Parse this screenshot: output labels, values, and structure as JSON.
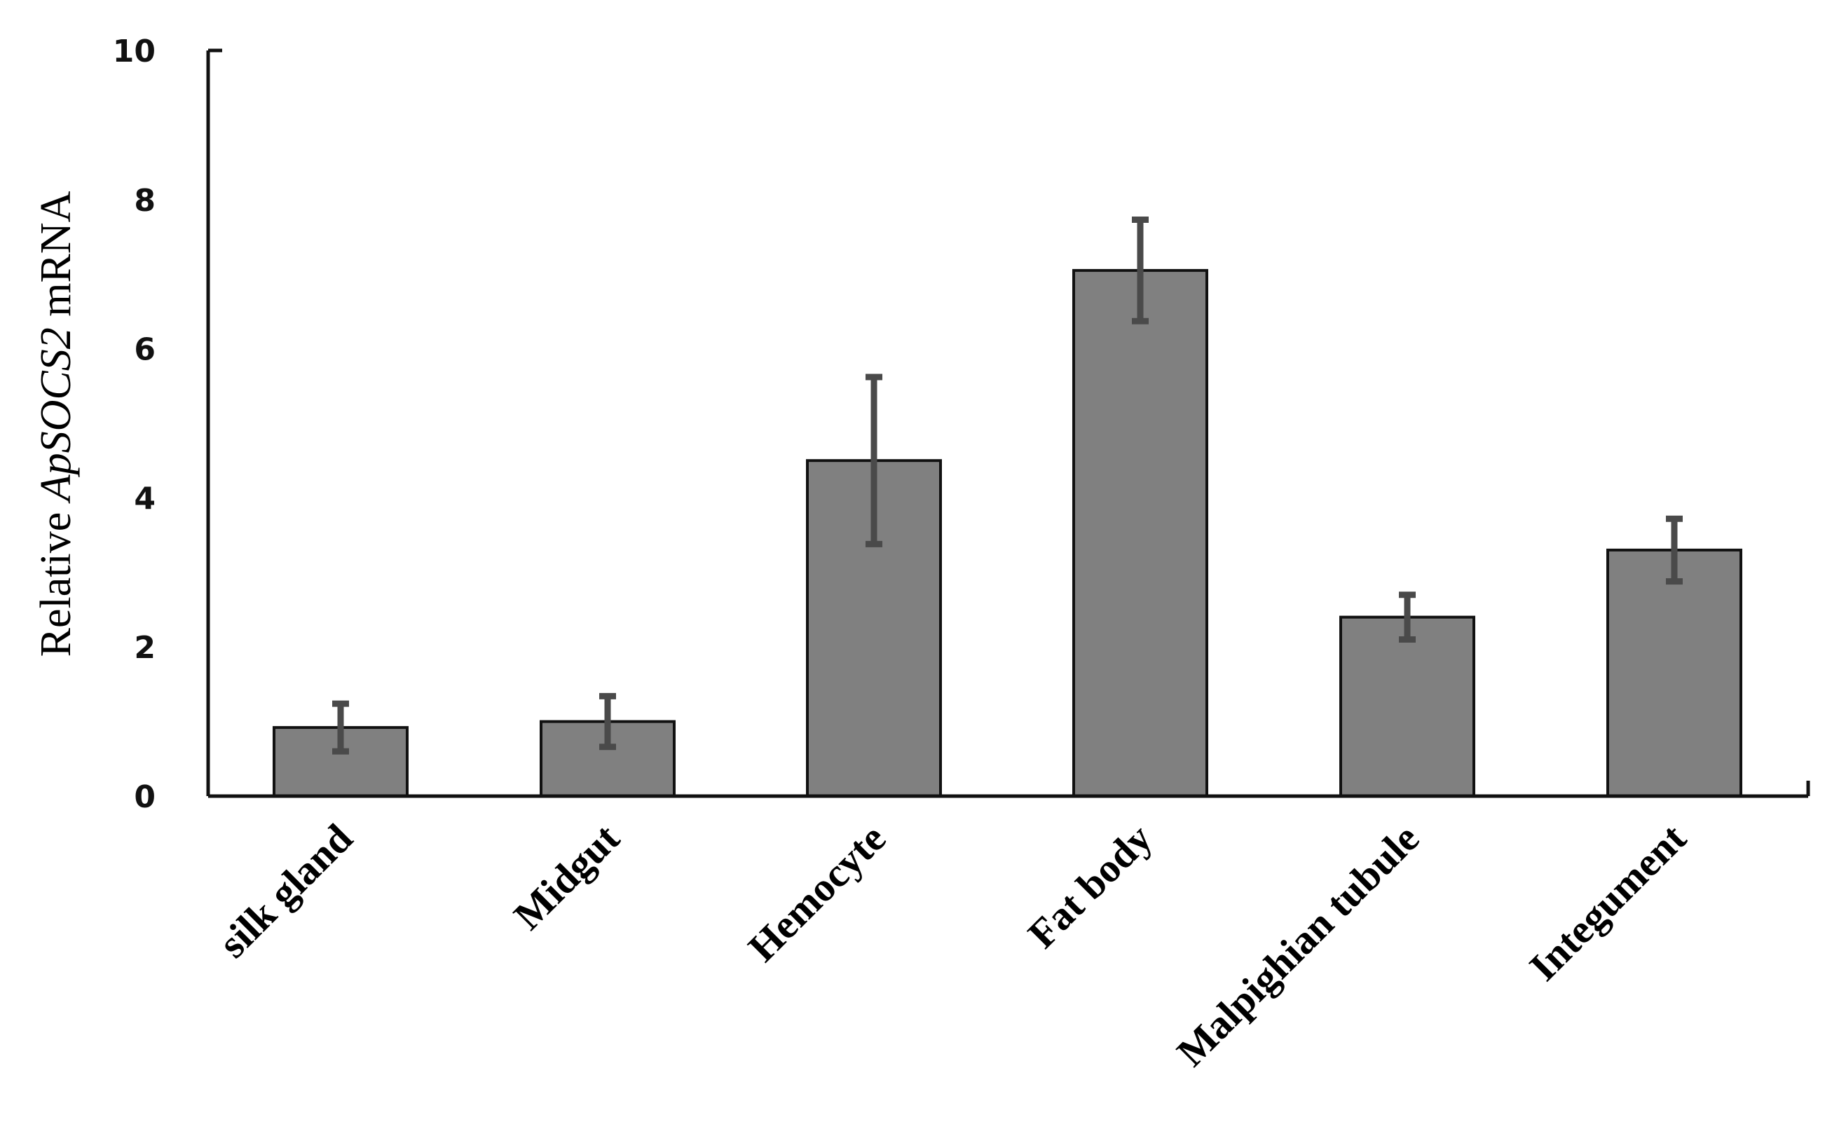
{
  "chart_data": {
    "type": "bar",
    "title": "",
    "xlabel": "",
    "ylabel": {
      "prefix": "Relative ",
      "gene": "ApSOCS2",
      "suffix": " mRNA"
    },
    "ylim": [
      0,
      10
    ],
    "yticks": [
      0,
      2,
      4,
      6,
      8,
      10
    ],
    "grid": false,
    "legend": "none",
    "categories": [
      "silk gland",
      "Midgut",
      "Hemocyte",
      "Fat body",
      "Malpighian tubule",
      "Integument"
    ],
    "values": [
      0.92,
      1.0,
      4.5,
      7.05,
      2.4,
      3.3
    ],
    "errors": [
      0.32,
      0.34,
      1.12,
      0.68,
      0.3,
      0.42
    ],
    "colors": {
      "bar": "#808080",
      "bar_edge": "#111111",
      "error_bar": "#4a4a4a",
      "axis": "#111111"
    }
  }
}
